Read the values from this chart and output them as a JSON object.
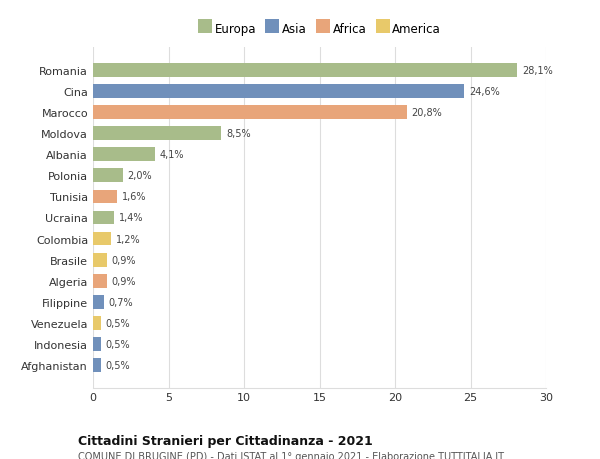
{
  "categories": [
    "Afghanistan",
    "Indonesia",
    "Venezuela",
    "Filippine",
    "Algeria",
    "Brasile",
    "Colombia",
    "Ucraina",
    "Tunisia",
    "Polonia",
    "Albania",
    "Moldova",
    "Marocco",
    "Cina",
    "Romania"
  ],
  "values": [
    0.5,
    0.5,
    0.5,
    0.7,
    0.9,
    0.9,
    1.2,
    1.4,
    1.6,
    2.0,
    4.1,
    8.5,
    20.8,
    24.6,
    28.1
  ],
  "labels": [
    "0,5%",
    "0,5%",
    "0,5%",
    "0,7%",
    "0,9%",
    "0,9%",
    "1,2%",
    "1,4%",
    "1,6%",
    "2,0%",
    "4,1%",
    "8,5%",
    "20,8%",
    "24,6%",
    "28,1%"
  ],
  "colors": [
    "#7090bb",
    "#7090bb",
    "#e8c96a",
    "#7090bb",
    "#e8a57a",
    "#e8c96a",
    "#e8c96a",
    "#a8bc8a",
    "#e8a57a",
    "#a8bc8a",
    "#a8bc8a",
    "#a8bc8a",
    "#e8a57a",
    "#7090bb",
    "#a8bc8a"
  ],
  "legend_labels": [
    "Europa",
    "Asia",
    "Africa",
    "America"
  ],
  "legend_colors": [
    "#a8bc8a",
    "#7090bb",
    "#e8a57a",
    "#e8c96a"
  ],
  "title": "Cittadini Stranieri per Cittadinanza - 2021",
  "subtitle": "COMUNE DI BRUGINE (PD) - Dati ISTAT al 1° gennaio 2021 - Elaborazione TUTTITALIA.IT",
  "xlim": [
    0,
    30
  ],
  "xticks": [
    0,
    5,
    10,
    15,
    20,
    25,
    30
  ],
  "background_color": "#ffffff",
  "grid_color": "#dddddd",
  "bar_height": 0.65
}
